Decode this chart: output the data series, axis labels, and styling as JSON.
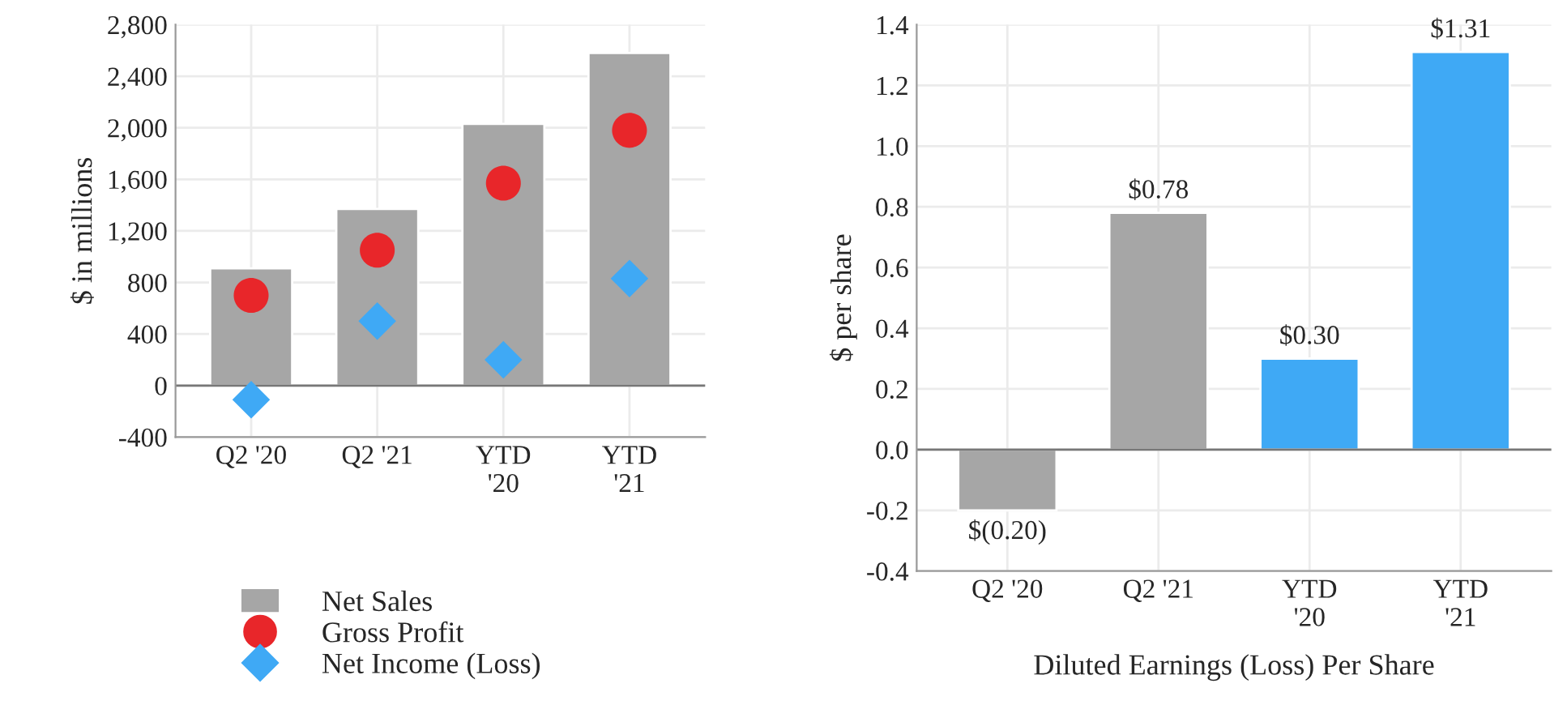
{
  "chart_data": [
    {
      "type": "bar",
      "ylabel": "$ in millions",
      "categories": [
        "Q2 '20",
        "Q2 '21",
        "YTD\n'20",
        "YTD\n'21"
      ],
      "series": [
        {
          "name": "Net Sales",
          "type": "bar",
          "color": "#a6a6a6",
          "values": [
            910,
            1370,
            2030,
            2580
          ]
        },
        {
          "name": "Gross Profit",
          "type": "scatter",
          "marker": "circle",
          "color": "#e8262a",
          "values": [
            700,
            1050,
            1570,
            1980
          ]
        },
        {
          "name": "Net Income (Loss)",
          "type": "scatter",
          "marker": "diamond",
          "color": "#3fa9f5",
          "values": [
            -110,
            500,
            200,
            830
          ]
        }
      ],
      "ylim": [
        -400,
        2800
      ],
      "yticks": [
        -400,
        0,
        {
          "value": 400,
          "label": "400"
        },
        {
          "value": 800,
          "label": "800"
        },
        {
          "value": 1200,
          "label": "1,200"
        },
        {
          "value": 1600,
          "label": "1,600"
        },
        {
          "value": 2000,
          "label": "2,000"
        },
        {
          "value": 2400,
          "label": "2,400"
        },
        {
          "value": 2800,
          "label": "2,800"
        }
      ],
      "grid": true,
      "legend": "bottom"
    },
    {
      "type": "bar",
      "ylabel": "$ per share",
      "xlabel": "Diluted Earnings (Loss) Per Share",
      "categories": [
        "Q2 '20",
        "Q2 '21",
        "YTD\n'20",
        "YTD\n'21"
      ],
      "values": [
        -0.2,
        0.78,
        0.3,
        1.31
      ],
      "colors": [
        "#a6a6a6",
        "#a6a6a6",
        "#3fa9f5",
        "#3fa9f5"
      ],
      "value_labels": [
        "$(0.20)",
        "$0.78",
        "$0.30",
        "$1.31"
      ],
      "ylim": [
        -0.4,
        1.4
      ],
      "yticks": [
        -0.4,
        -0.2,
        {
          "value": 0,
          "label": "0.0"
        },
        0.2,
        0.4,
        0.6,
        0.8,
        {
          "value": 1,
          "label": "1.0"
        },
        1.2,
        1.4
      ],
      "grid": true
    }
  ]
}
